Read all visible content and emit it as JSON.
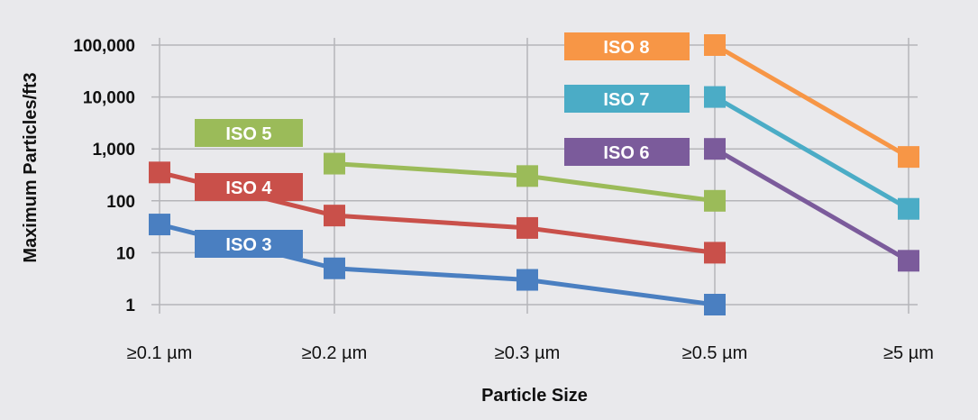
{
  "chart_data": {
    "type": "line",
    "y_scale": "log",
    "ylim": [
      1,
      100000
    ],
    "xlabel": "Particle Size",
    "ylabel": "Maximum Particles/ft3",
    "categories": [
      "≥0.1 µm",
      "≥0.2 µm",
      "≥0.3 µm",
      "≥0.5 µm",
      "≥5 µm"
    ],
    "y_ticks": [
      {
        "value": 1,
        "label": "1"
      },
      {
        "value": 10,
        "label": "10"
      },
      {
        "value": 100,
        "label": "100"
      },
      {
        "value": 1000,
        "label": "1,000"
      },
      {
        "value": 10000,
        "label": "10,000"
      },
      {
        "value": 100000,
        "label": "100,000"
      }
    ],
    "grid": true,
    "series": [
      {
        "name": "ISO 3",
        "color": "#4a7fc1",
        "values": [
          35,
          5,
          3,
          1,
          null
        ]
      },
      {
        "name": "ISO 4",
        "color": "#c9504a",
        "values": [
          352,
          52,
          30,
          10,
          null
        ]
      },
      {
        "name": "ISO 5",
        "color": "#9bbb59",
        "values": [
          null,
          520,
          300,
          100,
          null
        ]
      },
      {
        "name": "ISO 6",
        "color": "#7b5b9b",
        "values": [
          null,
          null,
          null,
          1000,
          7
        ]
      },
      {
        "name": "ISO 7",
        "color": "#4bacc6",
        "values": [
          null,
          null,
          null,
          10000,
          70
        ]
      },
      {
        "name": "ISO 8",
        "color": "#f79646",
        "values": [
          null,
          null,
          null,
          100000,
          700
        ]
      }
    ]
  }
}
